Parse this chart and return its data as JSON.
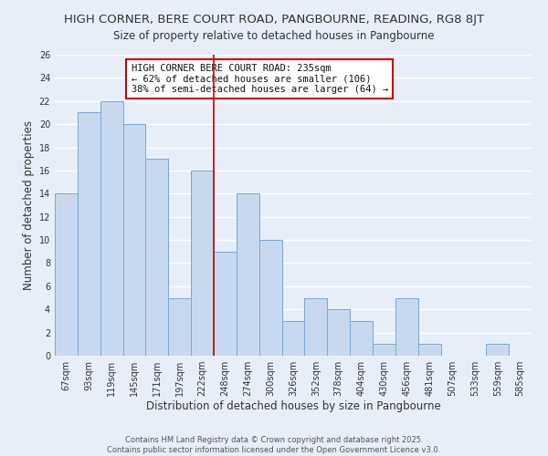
{
  "title": "HIGH CORNER, BERE COURT ROAD, PANGBOURNE, READING, RG8 8JT",
  "subtitle": "Size of property relative to detached houses in Pangbourne",
  "xlabel": "Distribution of detached houses by size in Pangbourne",
  "ylabel": "Number of detached properties",
  "bar_labels": [
    "67sqm",
    "93sqm",
    "119sqm",
    "145sqm",
    "171sqm",
    "197sqm",
    "222sqm",
    "248sqm",
    "274sqm",
    "300sqm",
    "326sqm",
    "352sqm",
    "378sqm",
    "404sqm",
    "430sqm",
    "456sqm",
    "481sqm",
    "507sqm",
    "533sqm",
    "559sqm",
    "585sqm"
  ],
  "bar_heights": [
    14,
    21,
    22,
    20,
    17,
    5,
    16,
    9,
    14,
    10,
    3,
    5,
    4,
    3,
    1,
    5,
    1,
    0,
    0,
    1,
    0
  ],
  "bar_color": "#c8d9ef",
  "bar_edge_color": "#7ba7ce",
  "background_color": "#e8eef8",
  "grid_color": "#ffffff",
  "vline_x": 6.5,
  "vline_color": "#cc0000",
  "annotation_lines": [
    "HIGH CORNER BERE COURT ROAD: 235sqm",
    "← 62% of detached houses are smaller (106)",
    "38% of semi-detached houses are larger (64) →"
  ],
  "ylim": [
    0,
    26
  ],
  "yticks": [
    0,
    2,
    4,
    6,
    8,
    10,
    12,
    14,
    16,
    18,
    20,
    22,
    24,
    26
  ],
  "footer1": "Contains HM Land Registry data © Crown copyright and database right 2025.",
  "footer2": "Contains public sector information licensed under the Open Government Licence v3.0.",
  "title_fontsize": 9.5,
  "subtitle_fontsize": 8.5,
  "xlabel_fontsize": 8.5,
  "ylabel_fontsize": 8.5,
  "tick_fontsize": 7,
  "annotation_fontsize": 7.5,
  "footer_fontsize": 6.0
}
